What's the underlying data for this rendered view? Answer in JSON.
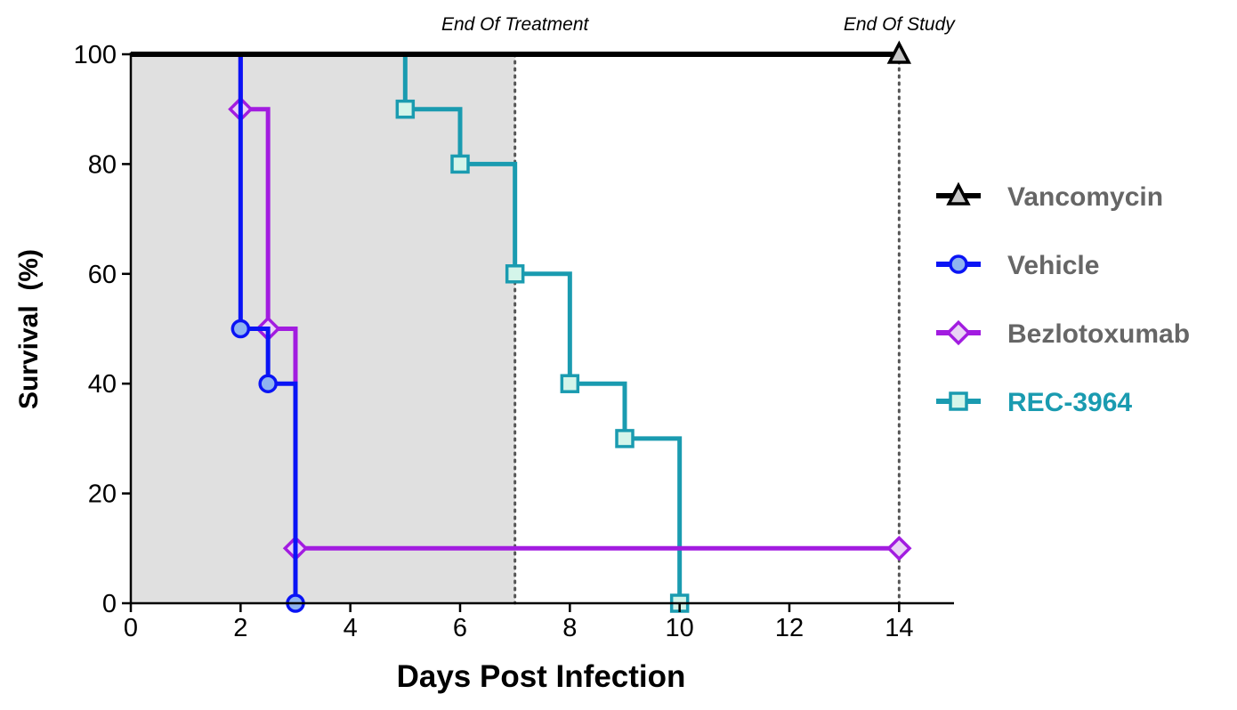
{
  "chart_data": {
    "type": "line",
    "step": true,
    "xlabel": "Days Post Infection",
    "ylabel": "Survival  (%)",
    "xlim": [
      0,
      15
    ],
    "ylim": [
      0,
      100
    ],
    "xticks": [
      0,
      2,
      4,
      6,
      8,
      10,
      12,
      14
    ],
    "yticks": [
      0,
      20,
      40,
      60,
      80,
      100
    ],
    "grid": false,
    "legend_position": "right",
    "shaded_region": {
      "x": [
        0,
        7
      ],
      "color": "#e0e0e0"
    },
    "annotations": [
      {
        "text": "End Of Treatment",
        "x": 7
      },
      {
        "text": "End Of Study",
        "x": 14
      }
    ],
    "series": [
      {
        "name": "Vancomycin",
        "color": "#000000",
        "fill": "#c8c8c8",
        "marker": "triangle",
        "label_color": "#666666",
        "x": [
          0,
          14
        ],
        "y": [
          100,
          100
        ],
        "marked": [
          14
        ]
      },
      {
        "name": "Vehicle",
        "color": "#0a14f5",
        "fill": "#8fb4f0",
        "marker": "circle",
        "label_color": "#666666",
        "x": [
          0,
          2,
          2.5,
          3
        ],
        "y": [
          100,
          50,
          40,
          0
        ],
        "marked": [
          2,
          2.5,
          3
        ]
      },
      {
        "name": "Bezlotoxumab",
        "color": "#a21ce0",
        "fill": "#ead4f5",
        "marker": "diamond",
        "label_color": "#666666",
        "x": [
          0,
          2,
          2.5,
          3,
          14
        ],
        "y": [
          100,
          90,
          50,
          10,
          10
        ],
        "marked": [
          2,
          2.5,
          3,
          14
        ]
      },
      {
        "name": "REC-3964",
        "color": "#1a9bb0",
        "fill": "#d4f5ea",
        "marker": "square",
        "label_color": "#1a9bb0",
        "x": [
          0,
          5,
          6,
          7,
          8,
          9,
          10
        ],
        "y": [
          100,
          90,
          80,
          60,
          40,
          30,
          0
        ],
        "marked": [
          5,
          6,
          7,
          8,
          9,
          10
        ]
      }
    ]
  }
}
